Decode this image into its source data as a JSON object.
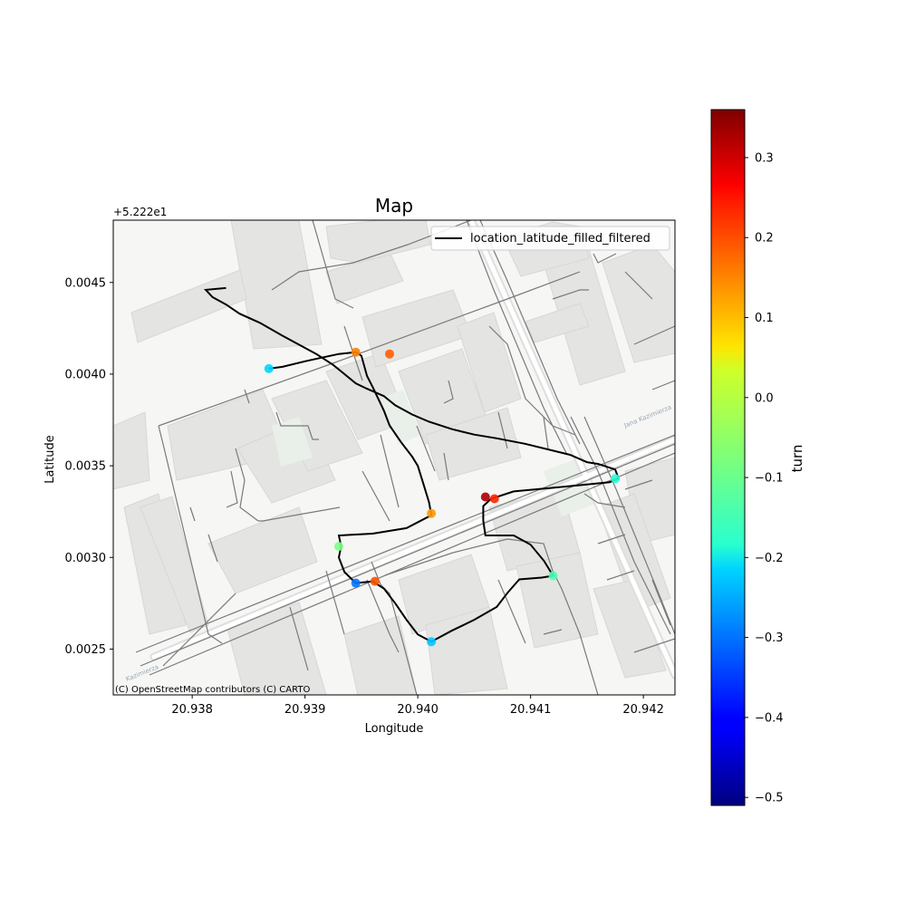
{
  "title": "Map",
  "offset_label": "+5.222e1",
  "xlabel": "Longitude",
  "ylabel": "Latitude",
  "attribution": "(C) OpenStreetMap contributors (C) CARTO",
  "street_labels": [
    "Jana Kazimierza",
    "Kazimierza"
  ],
  "legend": {
    "label": "location_latitude_filled_filtered",
    "placement": "upper right"
  },
  "colorbar": {
    "label": "turn",
    "colormap": "jet",
    "range": [
      -0.51,
      0.36
    ],
    "ticks": [
      "-0.5",
      "-0.4",
      "-0.3",
      "-0.2",
      "-0.1",
      "0.0",
      "0.1",
      "0.2",
      "0.3"
    ],
    "tick_values": [
      -0.5,
      -0.4,
      -0.3,
      -0.2,
      -0.1,
      0.0,
      0.1,
      0.2,
      0.3
    ]
  },
  "chart_data": {
    "type": "line",
    "title": "Map",
    "xlabel": "Longitude",
    "ylabel": "Latitude",
    "xlim": [
      20.9373,
      20.94228
    ],
    "ylim": [
      52.22225,
      52.22484
    ],
    "y_offset": 52.22,
    "xticks": [
      "20.938",
      "20.939",
      "20.940",
      "20.941",
      "20.942"
    ],
    "xtick_values": [
      20.938,
      20.939,
      20.94,
      20.941,
      20.942
    ],
    "yticks": [
      "0.0025",
      "0.0030",
      "0.0035",
      "0.0040",
      "0.0045"
    ],
    "ytick_values": [
      52.2225,
      52.223,
      52.2235,
      52.224,
      52.2245
    ],
    "series": [
      {
        "name": "location_latitude_filled_filtered",
        "color": "#000000",
        "points": [
          [
            20.93868,
            52.22403
          ],
          [
            20.9388,
            52.22404
          ],
          [
            20.939,
            52.22407
          ],
          [
            20.93915,
            52.22409
          ],
          [
            20.9393,
            52.22411
          ],
          [
            20.93945,
            52.22412
          ],
          [
            20.9395,
            52.2241
          ],
          [
            20.93955,
            52.22399
          ],
          [
            20.9396,
            52.22393
          ],
          [
            20.9397,
            52.2238
          ],
          [
            20.93975,
            52.22372
          ],
          [
            20.93985,
            52.22363
          ],
          [
            20.93995,
            52.22355
          ],
          [
            20.94,
            52.2235
          ],
          [
            20.94005,
            52.2234
          ],
          [
            20.9401,
            52.2233
          ],
          [
            20.94012,
            52.22323
          ],
          [
            20.9399,
            52.22316
          ],
          [
            20.9396,
            52.22313
          ],
          [
            20.9393,
            52.22312
          ],
          [
            20.93932,
            52.22306
          ],
          [
            20.9393,
            52.223
          ],
          [
            20.93935,
            52.22292
          ],
          [
            20.93945,
            52.22286
          ],
          [
            20.9396,
            52.22287
          ],
          [
            20.9397,
            52.22283
          ],
          [
            20.9398,
            52.22275
          ],
          [
            20.9399,
            52.22266
          ],
          [
            20.94,
            52.22258
          ],
          [
            20.94012,
            52.22254
          ],
          [
            20.9403,
            52.2226
          ],
          [
            20.9405,
            52.22266
          ],
          [
            20.9407,
            52.22273
          ],
          [
            20.9408,
            52.22281
          ],
          [
            20.9409,
            52.22288
          ],
          [
            20.9411,
            52.22289
          ],
          [
            20.9412,
            52.2229
          ],
          [
            20.94112,
            52.22298
          ],
          [
            20.941,
            52.22307
          ],
          [
            20.94085,
            52.22312
          ],
          [
            20.9406,
            52.22312
          ],
          [
            20.94058,
            52.2232
          ],
          [
            20.94058,
            52.22328
          ],
          [
            20.94065,
            52.22332
          ],
          [
            20.94085,
            52.22336
          ],
          [
            20.9412,
            52.22338
          ],
          [
            20.9417,
            52.22341
          ],
          [
            20.94178,
            52.22343
          ],
          [
            20.94175,
            52.22348
          ],
          [
            20.9416,
            52.22351
          ],
          [
            20.9415,
            52.22352
          ],
          [
            20.94135,
            52.22356
          ],
          [
            20.94095,
            52.22362
          ],
          [
            20.9407,
            52.22365
          ],
          [
            20.9405,
            52.22367
          ],
          [
            20.9403,
            52.2237
          ],
          [
            20.9401,
            52.22374
          ],
          [
            20.93995,
            52.22378
          ],
          [
            20.9398,
            52.22383
          ],
          [
            20.9397,
            52.22388
          ],
          [
            20.93955,
            52.22392
          ],
          [
            20.93945,
            52.22395
          ],
          [
            20.93935,
            52.224
          ],
          [
            20.93925,
            52.22405
          ],
          [
            20.9391,
            52.22411
          ],
          [
            20.93895,
            52.22416
          ],
          [
            20.9388,
            52.22421
          ],
          [
            20.9386,
            52.22428
          ],
          [
            20.93842,
            52.22433
          ],
          [
            20.9383,
            52.22438
          ],
          [
            20.93818,
            52.22442
          ],
          [
            20.93812,
            52.22446
          ],
          [
            20.9383,
            52.22447
          ]
        ]
      }
    ],
    "markers": [
      {
        "lon": 20.93868,
        "lat": 52.22403,
        "turn": -0.22
      },
      {
        "lon": 20.93945,
        "lat": 52.22412,
        "turn": 0.14
      },
      {
        "lon": 20.93975,
        "lat": 52.22411,
        "turn": 0.17
      },
      {
        "lon": 20.94012,
        "lat": 52.22324,
        "turn": 0.12
      },
      {
        "lon": 20.9393,
        "lat": 52.22306,
        "turn": -0.08
      },
      {
        "lon": 20.93945,
        "lat": 52.22286,
        "turn": -0.3
      },
      {
        "lon": 20.93962,
        "lat": 52.22287,
        "turn": 0.18
      },
      {
        "lon": 20.94012,
        "lat": 52.22254,
        "turn": -0.23
      },
      {
        "lon": 20.9412,
        "lat": 52.2229,
        "turn": -0.12
      },
      {
        "lon": 20.9406,
        "lat": 52.22333,
        "turn": 0.32
      },
      {
        "lon": 20.94068,
        "lat": 52.22332,
        "turn": 0.22
      },
      {
        "lon": 20.94175,
        "lat": 52.22343,
        "turn": -0.15
      }
    ]
  }
}
